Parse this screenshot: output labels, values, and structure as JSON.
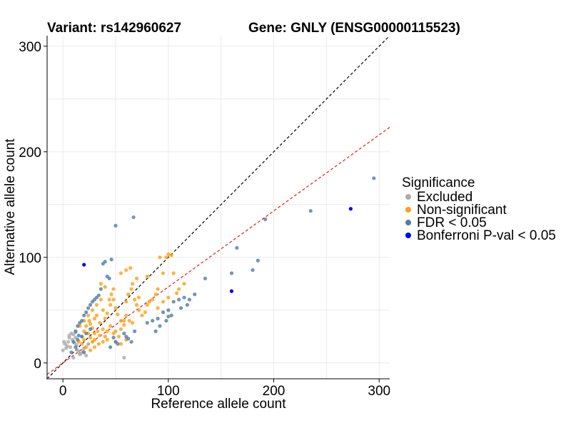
{
  "chart_data": {
    "type": "scatter",
    "title_left": "Variant: rs142960627",
    "title_right": "Gene: GNLY (ENSG00000115523)",
    "xlabel": "Reference allele count",
    "ylabel": "Alternative allele count",
    "xlim": [
      -15,
      310
    ],
    "ylim": [
      -15,
      310
    ],
    "xticks": [
      0,
      100,
      200,
      300
    ],
    "yticks": [
      0,
      100,
      200,
      300
    ],
    "grid": true,
    "legend": {
      "title": "Significance",
      "placement": "right"
    },
    "reference_lines": [
      {
        "name": "identity",
        "slope": 1,
        "intercept": 0,
        "color": "#000000",
        "dash": true
      },
      {
        "name": "fitted",
        "slope": 0.72,
        "intercept": 0,
        "color": "#e41a1c",
        "dash": true
      }
    ],
    "series": [
      {
        "name": "Excluded",
        "color": "#aaaaaa",
        "points": [
          [
            2,
            18
          ],
          [
            4,
            16
          ],
          [
            5,
            20
          ],
          [
            6,
            26
          ],
          [
            8,
            28
          ],
          [
            10,
            27
          ],
          [
            12,
            29
          ],
          [
            9,
            22
          ],
          [
            11,
            19
          ],
          [
            13,
            17
          ],
          [
            7,
            15
          ],
          [
            3,
            14
          ],
          [
            14,
            12
          ],
          [
            15,
            10
          ],
          [
            16,
            8
          ],
          [
            17,
            9
          ],
          [
            19,
            11
          ],
          [
            10,
            5
          ],
          [
            22,
            7
          ],
          [
            58,
            5
          ],
          [
            0,
            12
          ],
          [
            1,
            20
          ],
          [
            20,
            14
          ],
          [
            24,
            18
          ],
          [
            6,
            24
          ],
          [
            12,
            24
          ]
        ]
      },
      {
        "name": "Non-significant",
        "color": "#ff9f0f",
        "points": [
          [
            15,
            20
          ],
          [
            18,
            25
          ],
          [
            20,
            30
          ],
          [
            22,
            35
          ],
          [
            25,
            40
          ],
          [
            28,
            33
          ],
          [
            30,
            28
          ],
          [
            32,
            45
          ],
          [
            35,
            38
          ],
          [
            38,
            50
          ],
          [
            40,
            42
          ],
          [
            42,
            47
          ],
          [
            45,
            55
          ],
          [
            48,
            60
          ],
          [
            50,
            52
          ],
          [
            52,
            46
          ],
          [
            55,
            40
          ],
          [
            58,
            36
          ],
          [
            60,
            58
          ],
          [
            62,
            65
          ],
          [
            65,
            70
          ],
          [
            68,
            60
          ],
          [
            70,
            55
          ],
          [
            72,
            50
          ],
          [
            75,
            45
          ],
          [
            78,
            48
          ],
          [
            80,
            55
          ],
          [
            85,
            60
          ],
          [
            88,
            65
          ],
          [
            90,
            70
          ],
          [
            95,
            85
          ],
          [
            98,
            100
          ],
          [
            100,
            103
          ],
          [
            103,
            102
          ],
          [
            105,
            85
          ],
          [
            110,
            70
          ],
          [
            115,
            75
          ],
          [
            20,
            22
          ],
          [
            24,
            28
          ],
          [
            26,
            24
          ],
          [
            28,
            20
          ],
          [
            30,
            22
          ],
          [
            33,
            30
          ],
          [
            35,
            26
          ],
          [
            38,
            32
          ],
          [
            40,
            25
          ],
          [
            42,
            30
          ],
          [
            45,
            35
          ],
          [
            48,
            28
          ],
          [
            50,
            30
          ],
          [
            53,
            25
          ],
          [
            55,
            32
          ],
          [
            58,
            40
          ],
          [
            60,
            45
          ],
          [
            63,
            40
          ],
          [
            66,
            38
          ],
          [
            44,
            60
          ],
          [
            46,
            65
          ],
          [
            48,
            70
          ],
          [
            40,
            72
          ],
          [
            36,
            75
          ],
          [
            55,
            85
          ],
          [
            60,
            88
          ],
          [
            64,
            90
          ],
          [
            18,
            18
          ],
          [
            22,
            15
          ],
          [
            26,
            12
          ],
          [
            30,
            15
          ],
          [
            34,
            18
          ],
          [
            38,
            20
          ],
          [
            42,
            22
          ],
          [
            16,
            35
          ],
          [
            20,
            40
          ],
          [
            24,
            45
          ],
          [
            28,
            50
          ],
          [
            32,
            55
          ],
          [
            36,
            60
          ],
          [
            66,
            75
          ],
          [
            70,
            80
          ],
          [
            80,
            82
          ],
          [
            92,
            100
          ],
          [
            72,
            62
          ],
          [
            82,
            58
          ],
          [
            90,
            52
          ],
          [
            95,
            58
          ],
          [
            100,
            62
          ],
          [
            108,
            66
          ],
          [
            50,
            20
          ],
          [
            55,
            18
          ],
          [
            60,
            22
          ],
          [
            30,
            42
          ],
          [
            26,
            37
          ]
        ]
      },
      {
        "name": "FDR < 0.05",
        "color": "#4f7ba8",
        "points": [
          [
            8,
            10
          ],
          [
            10,
            20
          ],
          [
            12,
            30
          ],
          [
            14,
            35
          ],
          [
            16,
            38
          ],
          [
            18,
            40
          ],
          [
            20,
            45
          ],
          [
            22,
            48
          ],
          [
            24,
            52
          ],
          [
            26,
            55
          ],
          [
            28,
            58
          ],
          [
            30,
            60
          ],
          [
            32,
            62
          ],
          [
            34,
            64
          ],
          [
            36,
            70
          ],
          [
            42,
            82
          ],
          [
            44,
            80
          ],
          [
            46,
            98
          ],
          [
            40,
            96
          ],
          [
            38,
            94
          ],
          [
            50,
            130
          ],
          [
            67,
            138
          ],
          [
            58,
            28
          ],
          [
            60,
            25
          ],
          [
            62,
            23
          ],
          [
            65,
            20
          ],
          [
            68,
            30
          ],
          [
            48,
            24
          ],
          [
            50,
            20
          ],
          [
            52,
            18
          ],
          [
            45,
            15
          ],
          [
            80,
            38
          ],
          [
            85,
            40
          ],
          [
            90,
            42
          ],
          [
            95,
            48
          ],
          [
            100,
            50
          ],
          [
            103,
            45
          ],
          [
            105,
            58
          ],
          [
            110,
            60
          ],
          [
            115,
            62
          ],
          [
            120,
            60
          ],
          [
            125,
            65
          ],
          [
            135,
            80
          ],
          [
            160,
            85
          ],
          [
            165,
            109
          ],
          [
            180,
            88
          ],
          [
            185,
            97
          ],
          [
            192,
            136
          ],
          [
            235,
            144
          ],
          [
            295,
            175
          ],
          [
            88,
            30
          ],
          [
            92,
            35
          ],
          [
            98,
            40
          ],
          [
            100,
            44
          ],
          [
            112,
            52
          ],
          [
            118,
            55
          ],
          [
            14,
            22
          ],
          [
            18,
            25
          ],
          [
            22,
            28
          ],
          [
            26,
            32
          ],
          [
            12,
            15
          ],
          [
            15,
            26
          ],
          [
            20,
            10
          ]
        ]
      },
      {
        "name": "Bonferroni P-val < 0.05",
        "color": "#0000ff",
        "points": [
          [
            20,
            93
          ],
          [
            160,
            68
          ],
          [
            273,
            146
          ]
        ]
      }
    ]
  }
}
